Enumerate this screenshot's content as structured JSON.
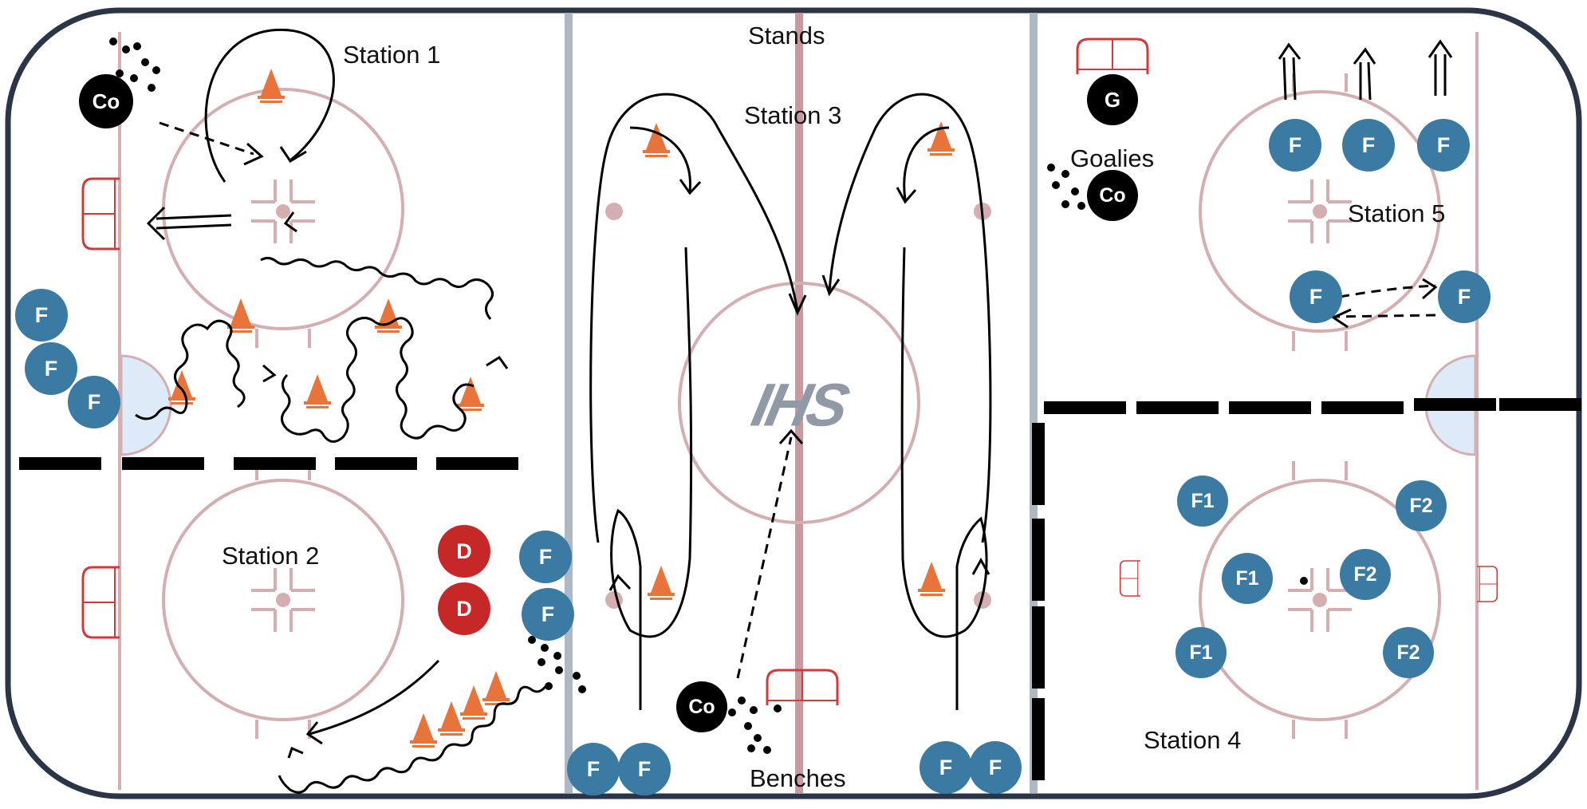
{
  "logo": "IHS",
  "labels": {
    "stands": "Stands",
    "benches": "Benches",
    "goalies": "Goalies",
    "station1": "Station 1",
    "station2": "Station 2",
    "station3": "Station 3",
    "station4": "Station 4",
    "station5": "Station 5"
  },
  "players": {
    "forward": "F",
    "defense": "D",
    "coach": "Co",
    "goalie": "G",
    "forward_group_1": "F1",
    "forward_group_2": "F2"
  },
  "colors": {
    "rink_border": "#2b3548",
    "line_pink": "#d4aeb0",
    "divider_gray": "#aeb8c2",
    "center_line": "#c89aa0",
    "crease": "#dcebf7",
    "net_red": "#d23a3a",
    "cone": "#e8743b",
    "forward": "#3b7aa3",
    "defense": "#c62828",
    "coach": "#000000"
  }
}
